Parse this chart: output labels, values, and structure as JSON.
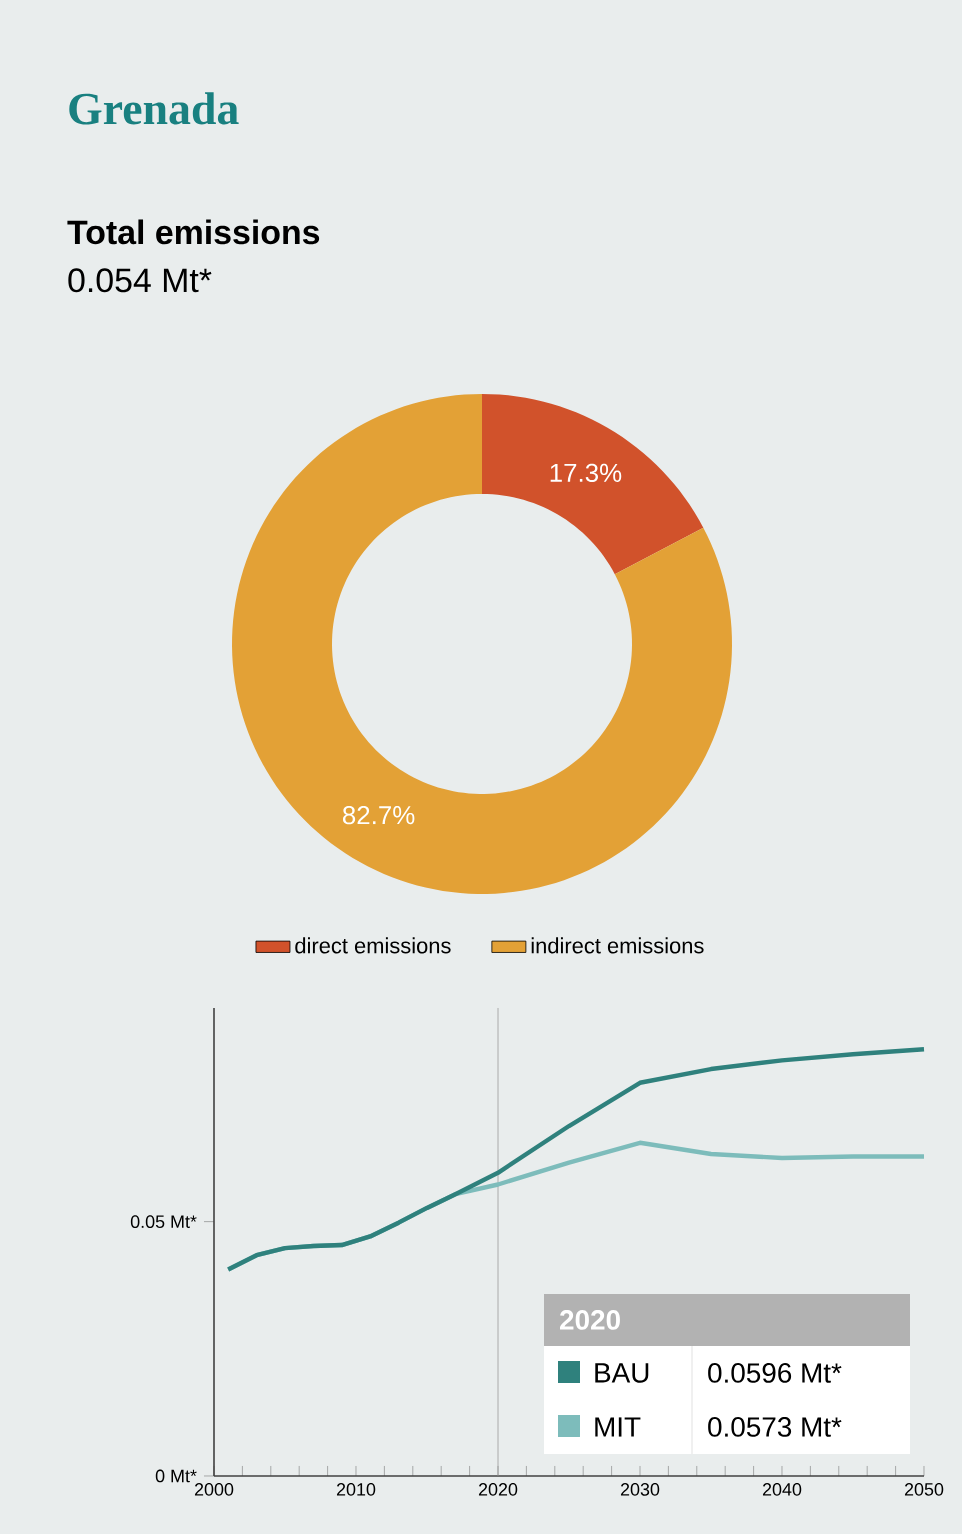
{
  "chart_data": [
    {
      "type": "donut",
      "title": "Grenada",
      "subtitle": "Total emissions",
      "annotations": [
        "0.054 Mt*"
      ],
      "categories": [
        "direct emissions",
        "indirect emissions"
      ],
      "values": [
        17.3,
        82.7
      ],
      "colors": [
        "#d1522b",
        "#e3a136"
      ],
      "value_labels": [
        "17.3%",
        "82.7%"
      ],
      "legend": "bottom"
    },
    {
      "type": "line",
      "legend": "bottom left",
      "x": [
        2001,
        2003,
        2005,
        2007,
        2009,
        2011,
        2013,
        2015,
        2017,
        2020,
        2025,
        2030,
        2035,
        2040,
        2045,
        2050
      ],
      "series": [
        {
          "name": "BAU",
          "color": "#2f817d",
          "values": [
            0.0406,
            0.0434,
            0.0448,
            0.0452,
            0.0454,
            0.0471,
            0.0498,
            0.0527,
            0.0554,
            0.0596,
            0.0688,
            0.0773,
            0.08,
            0.0817,
            0.0829,
            0.0839
          ]
        },
        {
          "name": "MIT",
          "color": "#7dbcbb",
          "values": [
            0.0406,
            0.0434,
            0.0448,
            0.0452,
            0.0454,
            0.0471,
            0.0498,
            0.0527,
            0.0554,
            0.0573,
            0.0616,
            0.0655,
            0.0633,
            0.0625,
            0.0628,
            0.0628
          ]
        }
      ],
      "xlim": [
        2000,
        2050
      ],
      "ylim": [
        0,
        0.092
      ],
      "xticks": [
        2000,
        {
          "value": 2002,
          "label": null
        },
        {
          "value": 2004,
          "label": null
        },
        {
          "value": 2006,
          "label": null
        },
        {
          "value": 2008,
          "label": null
        },
        2010,
        {
          "value": 2012,
          "label": null
        },
        {
          "value": 2014,
          "label": null
        },
        {
          "value": 2016,
          "label": null
        },
        {
          "value": 2018,
          "label": null
        },
        2020,
        {
          "value": 2022,
          "label": null
        },
        {
          "value": 2024,
          "label": null
        },
        {
          "value": 2026,
          "label": null
        },
        {
          "value": 2028,
          "label": null
        },
        2030,
        {
          "value": 2032,
          "label": null
        },
        {
          "value": 2034,
          "label": null
        },
        {
          "value": 2036,
          "label": null
        },
        {
          "value": 2038,
          "label": null
        },
        2040,
        {
          "value": 2042,
          "label": null
        },
        {
          "value": 2044,
          "label": null
        },
        {
          "value": 2046,
          "label": null
        },
        {
          "value": 2048,
          "label": null
        },
        2050
      ],
      "yticks": [
        {
          "value": 0,
          "label": "0 Mt*"
        },
        {
          "value": 0.05,
          "label": "0.05 Mt*"
        }
      ],
      "ref_lines": [
        {
          "axis": "x",
          "value": 2020,
          "color": "#9a9a9a"
        }
      ],
      "annotations": [
        "2020",
        "0.0596 Mt*",
        "0.0573 Mt*"
      ]
    }
  ]
}
